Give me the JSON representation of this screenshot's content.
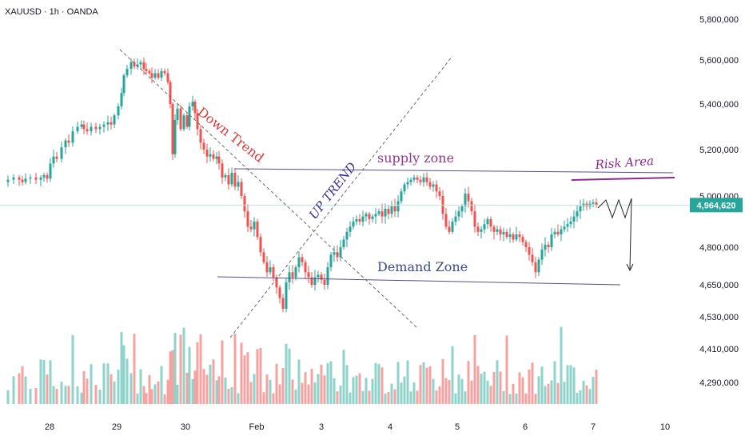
{
  "symbol_label": "XAUUSD · 1h · OANDA",
  "colors": {
    "up": "#26a69a",
    "down": "#ef5350",
    "vol_up": "#8fd3cb",
    "vol_down": "#f4a3a1",
    "price_line": "#26a69a",
    "trend": "#6b6b6b",
    "zone": "#5a4f8c",
    "supply_text": "#8e3b8e",
    "demand_text": "#3a4a8c",
    "downtrend_text": "#d83a3a",
    "uptrend_text": "#3b2d8c",
    "risk": "#8e2a8e"
  },
  "price_badge": "4,964,620",
  "annotations": {
    "down_trend": "Down Trend",
    "up_trend": "UP TREND",
    "supply_zone": "supply zone",
    "demand_zone": "Demand Zone",
    "risk_area": "Risk Area"
  },
  "chart_data": {
    "type": "candlestick",
    "symbol": "XAUUSD",
    "interval": "1h",
    "broker": "OANDA",
    "y_ticks": [
      {
        "label": "5,800,000",
        "value": 5800000
      },
      {
        "label": "5,600,000",
        "value": 5600000
      },
      {
        "label": "5,400,000",
        "value": 5400000
      },
      {
        "label": "5,200,000",
        "value": 5200000
      },
      {
        "label": "5,000,000",
        "value": 5000000
      },
      {
        "label": "4,800,000",
        "value": 4800000
      },
      {
        "label": "4,650,000",
        "value": 4650000
      },
      {
        "label": "4,530,000",
        "value": 4530000
      },
      {
        "label": "4,410,000",
        "value": 4410000
      },
      {
        "label": "4,290,000",
        "value": 4290000
      }
    ],
    "x_ticks": [
      "28",
      "29",
      "30",
      "Feb",
      "3",
      "4",
      "5",
      "6",
      "7",
      "10"
    ],
    "last_price": 4964620,
    "path_points": [
      [
        0,
        5060000
      ],
      [
        8,
        5070000
      ],
      [
        15,
        5080000
      ],
      [
        22,
        5070000
      ],
      [
        26,
        5060000
      ],
      [
        30,
        5075000
      ],
      [
        36,
        5080000
      ],
      [
        43,
        5070000
      ],
      [
        49,
        5080000
      ],
      [
        53,
        5090000
      ],
      [
        57,
        5075000
      ],
      [
        61,
        5140000
      ],
      [
        65,
        5170000
      ],
      [
        69,
        5160000
      ],
      [
        75,
        5210000
      ],
      [
        80,
        5240000
      ],
      [
        84,
        5230000
      ],
      [
        89,
        5280000
      ],
      [
        95,
        5300000
      ],
      [
        100,
        5310000
      ],
      [
        103,
        5290000
      ],
      [
        107,
        5280000
      ],
      [
        112,
        5300000
      ],
      [
        118,
        5290000
      ],
      [
        123,
        5300000
      ],
      [
        128,
        5310000
      ],
      [
        133,
        5320000
      ],
      [
        137,
        5310000
      ],
      [
        141,
        5350000
      ],
      [
        146,
        5390000
      ],
      [
        150,
        5450000
      ],
      [
        153,
        5530000
      ],
      [
        157,
        5560000
      ],
      [
        162,
        5590000
      ],
      [
        166,
        5570000
      ],
      [
        170,
        5580000
      ],
      [
        174,
        5590000
      ],
      [
        178,
        5560000
      ],
      [
        181,
        5550000
      ],
      [
        185,
        5540000
      ],
      [
        188,
        5520000
      ],
      [
        192,
        5540000
      ],
      [
        196,
        5520000
      ],
      [
        200,
        5550000
      ],
      [
        204,
        5540000
      ],
      [
        208,
        5500000
      ],
      [
        211,
        5400000
      ],
      [
        214,
        5180000
      ],
      [
        217,
        5330000
      ],
      [
        220,
        5380000
      ],
      [
        224,
        5290000
      ],
      [
        228,
        5350000
      ],
      [
        232,
        5300000
      ],
      [
        235,
        5390000
      ],
      [
        239,
        5410000
      ],
      [
        242,
        5360000
      ],
      [
        245,
        5290000
      ],
      [
        249,
        5230000
      ],
      [
        253,
        5200000
      ],
      [
        257,
        5170000
      ],
      [
        261,
        5180000
      ],
      [
        265,
        5160000
      ],
      [
        269,
        5170000
      ],
      [
        272,
        5140000
      ],
      [
        276,
        5080000
      ],
      [
        280,
        5090000
      ],
      [
        284,
        5050000
      ],
      [
        288,
        5100000
      ],
      [
        292,
        5040000
      ],
      [
        296,
        5060000
      ],
      [
        300,
        5000000
      ],
      [
        304,
        4940000
      ],
      [
        308,
        4880000
      ],
      [
        312,
        4870000
      ],
      [
        316,
        4900000
      ],
      [
        320,
        4840000
      ],
      [
        324,
        4780000
      ],
      [
        328,
        4740000
      ],
      [
        332,
        4700000
      ],
      [
        336,
        4720000
      ],
      [
        340,
        4680000
      ],
      [
        344,
        4640000
      ],
      [
        348,
        4600000
      ],
      [
        352,
        4560000
      ],
      [
        356,
        4660000
      ],
      [
        360,
        4700000
      ],
      [
        364,
        4680000
      ],
      [
        368,
        4720000
      ],
      [
        372,
        4760000
      ],
      [
        376,
        4740000
      ],
      [
        380,
        4700000
      ],
      [
        384,
        4680000
      ],
      [
        388,
        4650000
      ],
      [
        392,
        4680000
      ],
      [
        396,
        4690000
      ],
      [
        400,
        4670000
      ],
      [
        404,
        4650000
      ],
      [
        408,
        4720000
      ],
      [
        412,
        4770000
      ],
      [
        416,
        4780000
      ],
      [
        420,
        4760000
      ],
      [
        424,
        4800000
      ],
      [
        428,
        4830000
      ],
      [
        432,
        4860000
      ],
      [
        436,
        4880000
      ],
      [
        440,
        4900000
      ],
      [
        444,
        4910000
      ],
      [
        448,
        4900000
      ],
      [
        452,
        4920000
      ],
      [
        456,
        4930000
      ],
      [
        460,
        4910000
      ],
      [
        464,
        4920000
      ],
      [
        468,
        4930000
      ],
      [
        472,
        4940000
      ],
      [
        476,
        4920000
      ],
      [
        480,
        4950000
      ],
      [
        484,
        4930000
      ],
      [
        488,
        4960000
      ],
      [
        492,
        4940000
      ],
      [
        496,
        4980000
      ],
      [
        500,
        5020000
      ],
      [
        504,
        5050000
      ],
      [
        508,
        5060000
      ],
      [
        512,
        5070000
      ],
      [
        516,
        5080000
      ],
      [
        520,
        5070000
      ],
      [
        524,
        5060000
      ],
      [
        528,
        5080000
      ],
      [
        532,
        5060000
      ],
      [
        536,
        5040000
      ],
      [
        540,
        5050000
      ],
      [
        544,
        5020000
      ],
      [
        548,
        5000000
      ],
      [
        552,
        4930000
      ],
      [
        556,
        4880000
      ],
      [
        560,
        4860000
      ],
      [
        564,
        4900000
      ],
      [
        568,
        4920000
      ],
      [
        572,
        4940000
      ],
      [
        576,
        4960000
      ],
      [
        580,
        5010000
      ],
      [
        584,
        4980000
      ],
      [
        588,
        4940000
      ],
      [
        592,
        4880000
      ],
      [
        596,
        4860000
      ],
      [
        600,
        4870000
      ],
      [
        604,
        4890000
      ],
      [
        608,
        4910000
      ],
      [
        612,
        4880000
      ],
      [
        616,
        4860000
      ],
      [
        620,
        4870000
      ],
      [
        624,
        4850000
      ],
      [
        628,
        4860000
      ],
      [
        632,
        4840000
      ],
      [
        636,
        4850000
      ],
      [
        640,
        4830000
      ],
      [
        644,
        4850000
      ],
      [
        648,
        4840000
      ],
      [
        652,
        4820000
      ],
      [
        656,
        4800000
      ],
      [
        660,
        4770000
      ],
      [
        664,
        4740000
      ],
      [
        668,
        4700000
      ],
      [
        672,
        4750000
      ],
      [
        676,
        4790000
      ],
      [
        680,
        4810000
      ],
      [
        684,
        4800000
      ],
      [
        688,
        4850000
      ],
      [
        692,
        4860000
      ],
      [
        696,
        4850000
      ],
      [
        700,
        4870000
      ],
      [
        704,
        4880000
      ],
      [
        708,
        4890000
      ],
      [
        712,
        4900000
      ],
      [
        716,
        4920000
      ],
      [
        720,
        4940000
      ],
      [
        724,
        4960000
      ],
      [
        728,
        4970000
      ],
      [
        732,
        4960000
      ],
      [
        736,
        4970000
      ],
      [
        740,
        4975000
      ],
      [
        744,
        4964620
      ]
    ]
  }
}
